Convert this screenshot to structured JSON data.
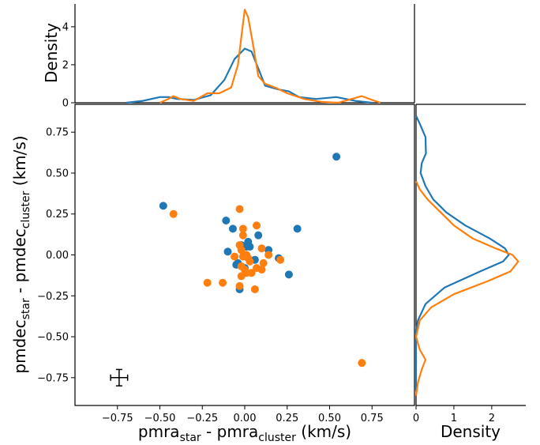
{
  "chart_data": {
    "type": "scatter",
    "scatter_series": [
      {
        "color": "#1f77b4",
        "points": [
          [
            0.54,
            0.6
          ],
          [
            -0.48,
            0.3
          ],
          [
            0.31,
            0.16
          ],
          [
            -0.11,
            0.21
          ],
          [
            -0.07,
            0.16
          ],
          [
            0.08,
            0.12
          ],
          [
            0.02,
            0.08
          ],
          [
            -0.1,
            0.02
          ],
          [
            0.01,
            0.05
          ],
          [
            0.03,
            0.05
          ],
          [
            -0.02,
            0.06
          ],
          [
            0.14,
            0.03
          ],
          [
            0.2,
            -0.02
          ],
          [
            0.06,
            -0.03
          ],
          [
            -0.04,
            -0.05
          ],
          [
            -0.05,
            -0.06
          ],
          [
            0.0,
            -0.08
          ],
          [
            0.26,
            -0.12
          ],
          [
            -0.03,
            -0.21
          ]
        ]
      },
      {
        "color": "#ff7f0e",
        "points": [
          [
            -0.42,
            0.25
          ],
          [
            -0.03,
            0.28
          ],
          [
            0.07,
            0.18
          ],
          [
            -0.01,
            0.16
          ],
          [
            -0.01,
            0.12
          ],
          [
            -0.03,
            0.06
          ],
          [
            0.1,
            0.04
          ],
          [
            -0.02,
            0.03
          ],
          [
            0.01,
            0.0
          ],
          [
            -0.06,
            -0.01
          ],
          [
            0.14,
            0.0
          ],
          [
            0.21,
            -0.03
          ],
          [
            -0.01,
            -0.01
          ],
          [
            0.02,
            -0.02
          ],
          [
            0.03,
            -0.04
          ],
          [
            0.11,
            -0.05
          ],
          [
            -0.02,
            -0.07
          ],
          [
            0.0,
            -0.09
          ],
          [
            0.07,
            -0.08
          ],
          [
            0.1,
            -0.09
          ],
          [
            0.04,
            -0.11
          ],
          [
            0.01,
            -0.11
          ],
          [
            -0.02,
            -0.13
          ],
          [
            -0.13,
            -0.17
          ],
          [
            -0.22,
            -0.17
          ],
          [
            -0.03,
            -0.19
          ],
          [
            0.06,
            -0.21
          ],
          [
            0.69,
            -0.66
          ]
        ]
      }
    ],
    "error_bar": {
      "x": -0.74,
      "y": -0.75,
      "xerr": 0.05,
      "yerr": 0.05
    },
    "kde_top": {
      "xlim": [
        -1.0,
        1.0
      ],
      "ylim": [
        0,
        5.2
      ],
      "ticks": [
        0,
        2,
        4
      ],
      "ylabel": "Density",
      "series": [
        {
          "color": "#1f77b4",
          "x": [
            -0.7,
            -0.6,
            -0.5,
            -0.45,
            -0.4,
            -0.3,
            -0.2,
            -0.12,
            -0.06,
            0.0,
            0.04,
            0.08,
            0.12,
            0.2,
            0.26,
            0.32,
            0.42,
            0.54,
            0.65,
            0.75
          ],
          "y": [
            0.0,
            0.1,
            0.3,
            0.3,
            0.2,
            0.15,
            0.4,
            1.2,
            2.3,
            2.85,
            2.7,
            1.8,
            0.9,
            0.7,
            0.6,
            0.3,
            0.2,
            0.3,
            0.1,
            0.0
          ]
        },
        {
          "color": "#ff7f0e",
          "x": [
            -0.5,
            -0.45,
            -0.42,
            -0.38,
            -0.3,
            -0.22,
            -0.15,
            -0.08,
            -0.04,
            -0.01,
            0.0,
            0.02,
            0.05,
            0.08,
            0.12,
            0.18,
            0.25,
            0.35,
            0.45,
            0.55,
            0.63,
            0.69,
            0.75,
            0.8
          ],
          "y": [
            0.0,
            0.2,
            0.35,
            0.2,
            0.1,
            0.5,
            0.5,
            0.8,
            2.0,
            4.2,
            4.9,
            4.5,
            3.0,
            1.4,
            1.0,
            0.8,
            0.5,
            0.2,
            0.05,
            0.0,
            0.2,
            0.35,
            0.15,
            0.0
          ]
        }
      ]
    },
    "kde_right": {
      "xlim": [
        0,
        2.9
      ],
      "ticks": [
        0,
        1,
        2
      ],
      "xlabel": "Density",
      "series": [
        {
          "color": "#1f77b4",
          "y": [
            0.85,
            0.8,
            0.72,
            0.62,
            0.56,
            0.5,
            0.42,
            0.34,
            0.26,
            0.18,
            0.1,
            0.04,
            0.0,
            -0.04,
            -0.1,
            -0.2,
            -0.3,
            -0.4,
            -0.46,
            -0.52,
            -0.62,
            -0.72,
            -0.82
          ],
          "x": [
            0.0,
            0.1,
            0.25,
            0.26,
            0.15,
            0.12,
            0.25,
            0.45,
            0.8,
            1.3,
            1.95,
            2.35,
            2.45,
            2.3,
            1.7,
            0.75,
            0.25,
            0.05,
            0.0,
            0.0,
            0.0,
            0.0,
            0.0
          ]
        },
        {
          "color": "#ff7f0e",
          "y": [
            0.45,
            0.4,
            0.34,
            0.26,
            0.18,
            0.1,
            0.04,
            0.0,
            -0.04,
            -0.1,
            -0.16,
            -0.24,
            -0.32,
            -0.4,
            -0.5,
            -0.58,
            -0.64,
            -0.7,
            -0.78,
            -0.86
          ],
          "x": [
            0.0,
            0.1,
            0.3,
            0.65,
            1.0,
            1.5,
            2.1,
            2.55,
            2.7,
            2.5,
            1.9,
            1.0,
            0.4,
            0.1,
            0.0,
            0.1,
            0.25,
            0.15,
            0.05,
            0.0
          ]
        }
      ]
    },
    "main": {
      "xlim": [
        -1.0,
        1.0
      ],
      "ylim": [
        -0.92,
        0.92
      ],
      "xticks": [
        -0.75,
        -0.5,
        -0.25,
        0.0,
        0.25,
        0.5,
        0.75
      ],
      "xtick_labels": [
        "−0.75",
        "−0.50",
        "−0.25",
        "0.00",
        "0.25",
        "0.50",
        "0.75"
      ],
      "yticks": [
        0.75,
        0.5,
        0.25,
        0.0,
        -0.25,
        -0.5,
        -0.75
      ],
      "ytick_labels": [
        "0.75",
        "0.50",
        "0.25",
        "0.00",
        "−0.25",
        "−0.50",
        "−0.75"
      ],
      "xlabel": {
        "base": "pmra",
        "sub1": "star",
        "mid": " - pmra",
        "sub2": "cluster",
        "tail": " (km/s)"
      },
      "ylabel": {
        "base": "pmdec",
        "sub1": "star",
        "mid": " - pmdec",
        "sub2": "cluster",
        "tail": " (km/s)"
      }
    }
  }
}
